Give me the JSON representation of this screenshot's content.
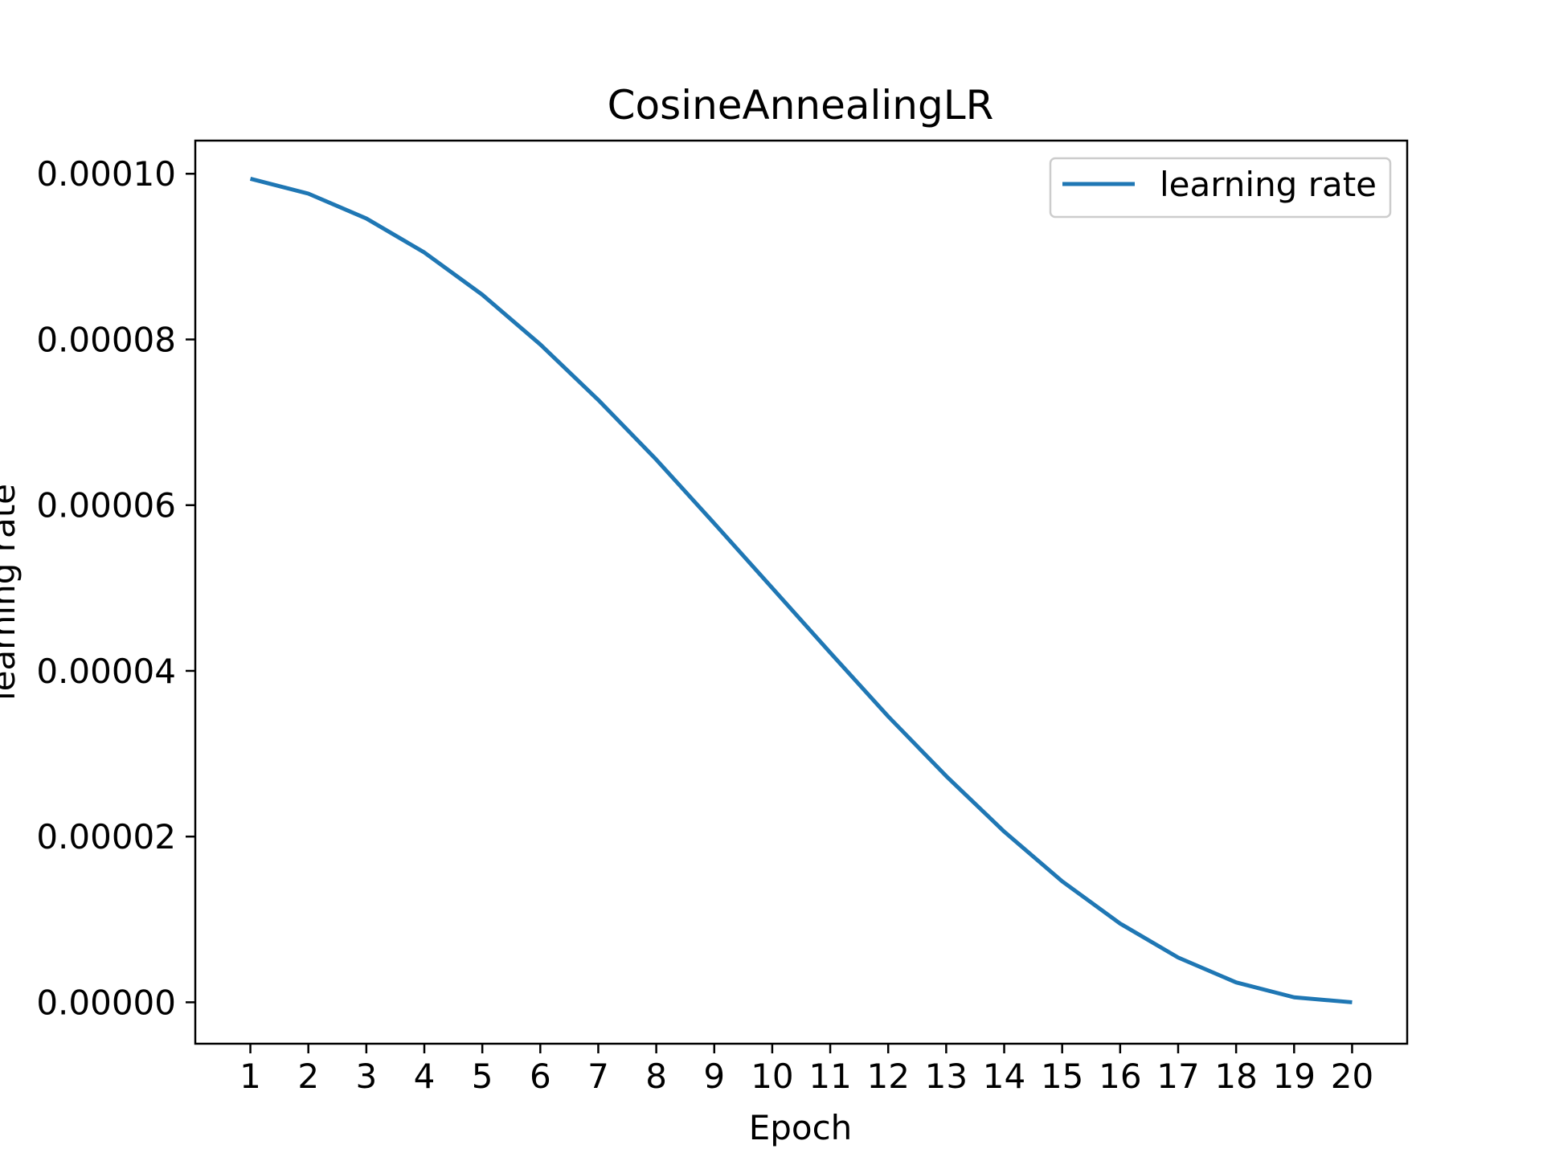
{
  "chart_data": {
    "type": "line",
    "title": "CosineAnnealingLR",
    "xlabel": "Epoch",
    "ylabel": "learning rate",
    "x": [
      1,
      2,
      3,
      4,
      5,
      6,
      7,
      8,
      9,
      10,
      11,
      12,
      13,
      14,
      15,
      16,
      17,
      18,
      19,
      20
    ],
    "series": [
      {
        "name": "learning rate",
        "color": "#1f77b4",
        "values": [
          9.94e-05,
          9.76e-05,
          9.46e-05,
          9.05e-05,
          8.54e-05,
          7.94e-05,
          7.27e-05,
          6.55e-05,
          5.78e-05,
          5e-05,
          4.22e-05,
          3.45e-05,
          2.73e-05,
          2.06e-05,
          1.46e-05,
          9.5e-06,
          5.4e-06,
          2.4e-06,
          6e-07,
          0.0
        ]
      }
    ],
    "xticks": [
      "1",
      "2",
      "3",
      "4",
      "5",
      "6",
      "7",
      "8",
      "9",
      "10",
      "11",
      "12",
      "13",
      "14",
      "15",
      "16",
      "17",
      "18",
      "19",
      "20"
    ],
    "yticks": [
      {
        "value": 0.0,
        "label": "0.00000"
      },
      {
        "value": 2e-05,
        "label": "0.00002"
      },
      {
        "value": 4e-05,
        "label": "0.00004"
      },
      {
        "value": 6e-05,
        "label": "0.00006"
      },
      {
        "value": 8e-05,
        "label": "0.00008"
      },
      {
        "value": 0.0001,
        "label": "0.00010"
      }
    ],
    "xlim": [
      0.05,
      20.95
    ],
    "ylim": [
      -5e-06,
      0.000104
    ],
    "grid": false,
    "legend": {
      "placement": "top-right",
      "entries": [
        "learning rate"
      ]
    }
  }
}
